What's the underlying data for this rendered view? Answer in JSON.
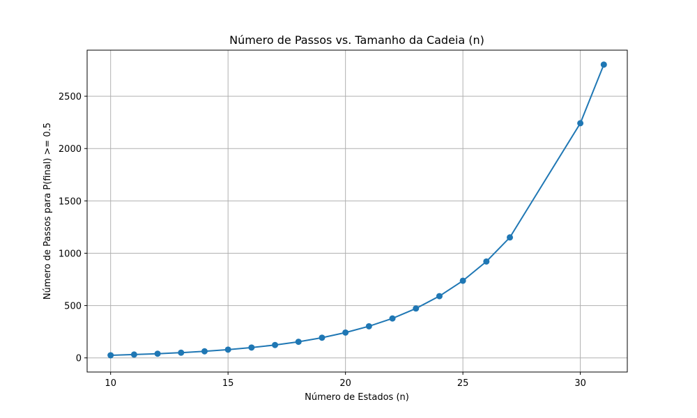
{
  "chart_data": {
    "type": "line",
    "title": "Número de Passos vs. Tamanho da Cadeia (n)",
    "xlabel": "Número de Estados (n)",
    "ylabel": "Número de Passos para P(final) >= 0.5",
    "x": [
      10,
      11,
      12,
      13,
      14,
      15,
      16,
      17,
      18,
      19,
      20,
      21,
      22,
      23,
      24,
      25,
      26,
      27,
      30,
      31
    ],
    "series": [
      {
        "values": [
          25,
          32,
          40,
          50,
          63,
          79,
          99,
          123,
          154,
          193,
          242,
          302,
          377,
          472,
          590,
          737,
          921,
          1151,
          2242,
          2802
        ],
        "color": "#1f77b4",
        "marker": "circle"
      }
    ],
    "xlim": [
      9,
      32
    ],
    "ylim": [
      -135,
      2940
    ],
    "xticks": [
      10,
      15,
      20,
      25,
      30
    ],
    "yticks": [
      0,
      500,
      1000,
      1500,
      2000,
      2500
    ],
    "grid": true
  }
}
